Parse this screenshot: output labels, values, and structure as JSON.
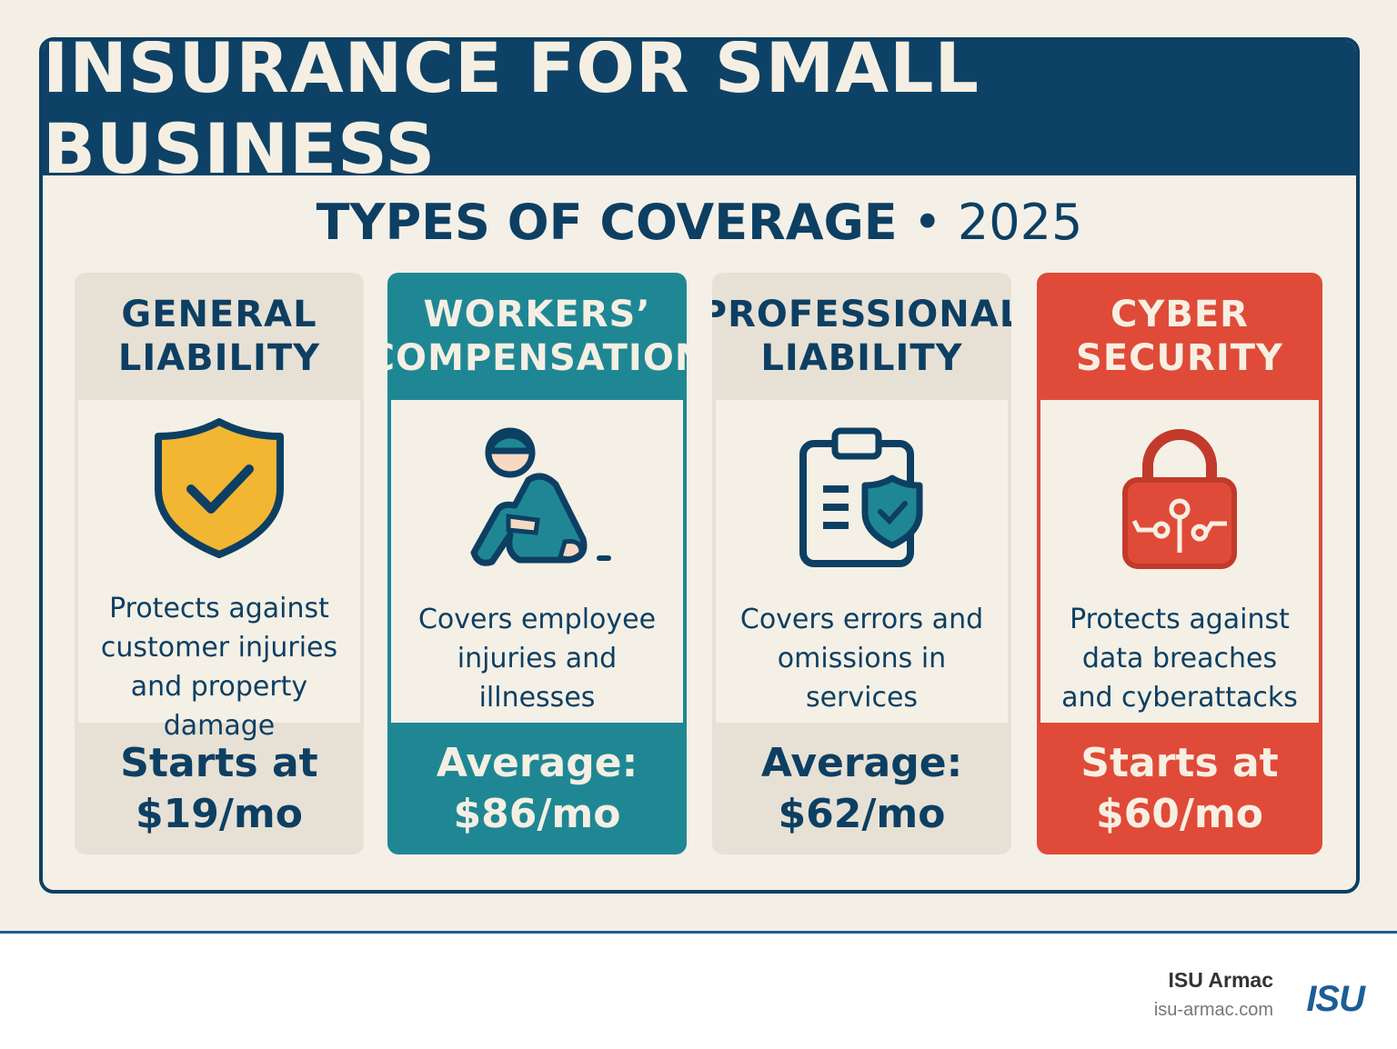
{
  "title": "INSURANCE FOR SMALL BUSINESS",
  "subtitle": {
    "main": "TYPES OF COVERAGE",
    "separator": "•",
    "year": "2025"
  },
  "cards": [
    {
      "title_line1": "GENERAL",
      "title_line2": "LIABILITY",
      "icon": "shield-check-icon",
      "desc": [
        "Protects against",
        "customer injuries",
        "and property",
        "damage"
      ],
      "price_line1": "Starts at",
      "price_line2": "$19/mo"
    },
    {
      "title_line1": "WORKERS’",
      "title_line2": "COMPENSATION",
      "icon": "injured-worker-icon",
      "desc": [
        "Covers employee",
        "injuries and",
        "illnesses"
      ],
      "price_line1": "Average:",
      "price_line2": "$86/mo"
    },
    {
      "title_line1": "PROFESSIONAL",
      "title_line2": "LIABILITY",
      "icon": "clipboard-shield-icon",
      "desc": [
        "Covers errors and",
        "omissions in",
        "services"
      ],
      "price_line1": "Average:",
      "price_line2": "$62/mo"
    },
    {
      "title_line1": "CYBER",
      "title_line2": "SECURITY",
      "icon": "circuit-lock-icon",
      "desc": [
        "Protects against",
        "data breaches",
        "and cyberattacks"
      ],
      "price_line1": "Starts at",
      "price_line2": "$60/mo"
    }
  ],
  "colors": {
    "navy": "#0d4266",
    "teal": "#1f8794",
    "red": "#df4b38",
    "beige": "#e7e1d5",
    "yellow": "#f2b632"
  },
  "footer": {
    "company": "ISU Armac",
    "url": "isu-armac.com",
    "logo_text": "ISU"
  }
}
